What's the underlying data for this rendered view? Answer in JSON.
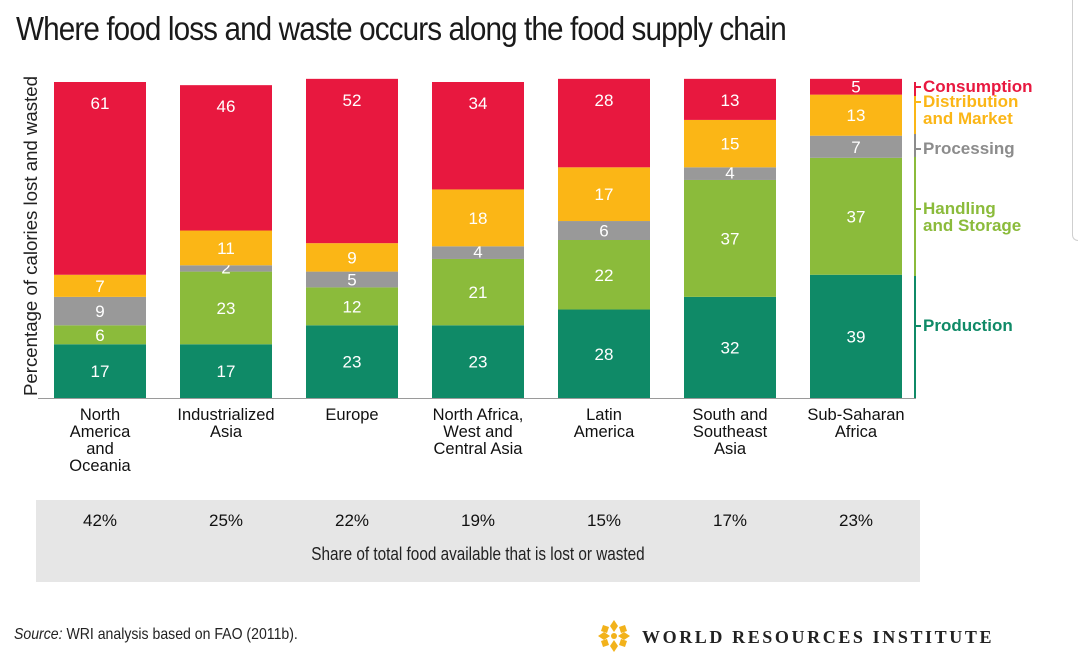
{
  "chart_data": {
    "type": "bar",
    "stacked": true,
    "title": "Where food loss and waste occurs along the food supply chain",
    "ylabel": "Percentage of calories lost and wasted",
    "ylim": [
      0,
      100
    ],
    "categories": [
      "North America and Oceania",
      "Industrialized Asia",
      "Europe",
      "North Africa, West and Central Asia",
      "Latin America",
      "South and Southeast Asia",
      "Sub-Saharan Africa"
    ],
    "category_lines": [
      [
        "North",
        "America",
        "and",
        "Oceania"
      ],
      [
        "Industrialized",
        "Asia"
      ],
      [
        "Europe"
      ],
      [
        "North Africa,",
        "West and",
        "Central Asia"
      ],
      [
        "Latin",
        "America"
      ],
      [
        "South and",
        "Southeast",
        "Asia"
      ],
      [
        "Sub-Saharan",
        "Africa"
      ]
    ],
    "series": [
      {
        "name": "Production",
        "color": "#0f8a67",
        "values": [
          17,
          17,
          23,
          23,
          28,
          32,
          39
        ]
      },
      {
        "name": "Handling and Storage",
        "color": "#8bbb3b",
        "values": [
          6,
          23,
          12,
          21,
          22,
          37,
          37
        ]
      },
      {
        "name": "Processing",
        "color": "#999999",
        "values": [
          9,
          2,
          5,
          4,
          6,
          4,
          7
        ]
      },
      {
        "name": "Distribution and Market",
        "color": "#fbb616",
        "values": [
          7,
          11,
          9,
          18,
          17,
          15,
          13
        ]
      },
      {
        "name": "Consumption",
        "color": "#e8183f",
        "values": [
          61,
          46,
          52,
          34,
          28,
          13,
          5
        ]
      }
    ],
    "legend": {
      "placement": "right",
      "entries": [
        {
          "lines": [
            "Consumption"
          ],
          "color": "#e8183f"
        },
        {
          "lines": [
            "Distribution",
            "and Market"
          ],
          "color": "#fbb616"
        },
        {
          "lines": [
            "Processing"
          ],
          "color": "#8c8c8c"
        },
        {
          "lines": [
            "Handling",
            "and Storage"
          ],
          "color": "#8bbb3b"
        },
        {
          "lines": [
            "Production"
          ],
          "color": "#0f8a67"
        }
      ]
    },
    "share_label": "Share of total food available that is lost or wasted",
    "share_values": [
      "42%",
      "25%",
      "22%",
      "19%",
      "15%",
      "17%",
      "23%"
    ]
  },
  "footer": {
    "source_label": "Source:",
    "source_text": "WRI analysis based on FAO (2011b).",
    "org_name": "WORLD RESOURCES INSTITUTE"
  }
}
